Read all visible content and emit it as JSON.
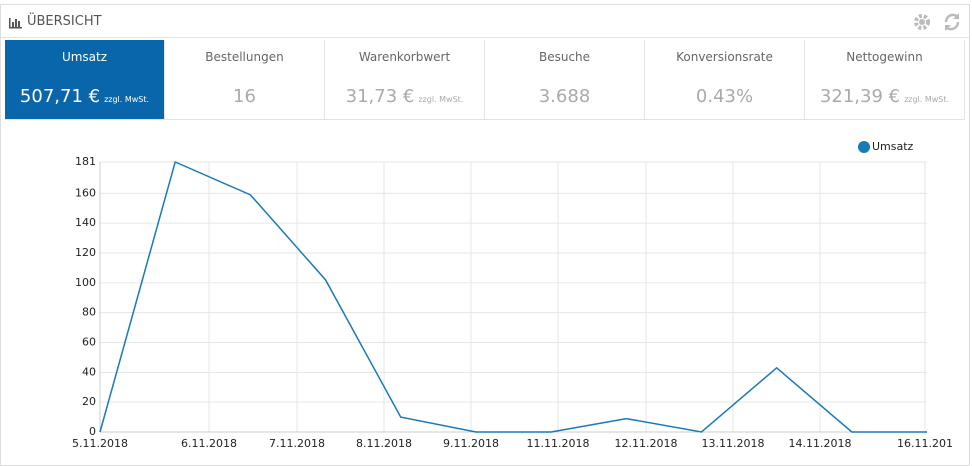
{
  "header": {
    "title": "ÜBERSICHT"
  },
  "kpis": [
    {
      "label": "Umsatz",
      "value": "507,71 €",
      "note": "zzgl. MwSt.",
      "active": true
    },
    {
      "label": "Bestellungen",
      "value": "16"
    },
    {
      "label": "Warenkorbwert",
      "value": "31,73 €",
      "note": "zzgl. MwSt."
    },
    {
      "label": "Besuche",
      "value": "3.688"
    },
    {
      "label": "Konversionsrate",
      "value": "0.43%"
    },
    {
      "label": "Nettogewinn",
      "value": "321,39 €",
      "note": "zzgl. MwSt."
    }
  ],
  "chart_data": {
    "type": "line",
    "xtick_labels": [
      "5.11.2018",
      "6.11.2018",
      "7.11.2018",
      "8.11.2018",
      "9.11.2018",
      "11.11.2018",
      "12.11.2018",
      "13.11.2018",
      "14.11.2018",
      "16.11.201"
    ],
    "series": [
      {
        "name": "Umsatz",
        "color": "#1a7ab5",
        "values": [
          0,
          181,
          159,
          102,
          10,
          0,
          0,
          9,
          0,
          43,
          0,
          0
        ]
      }
    ],
    "ylim": [
      0,
      181
    ],
    "yticks": [
      0,
      20,
      40,
      60,
      80,
      100,
      120,
      140,
      160,
      181
    ],
    "grid": true,
    "legend": "top-right"
  }
}
